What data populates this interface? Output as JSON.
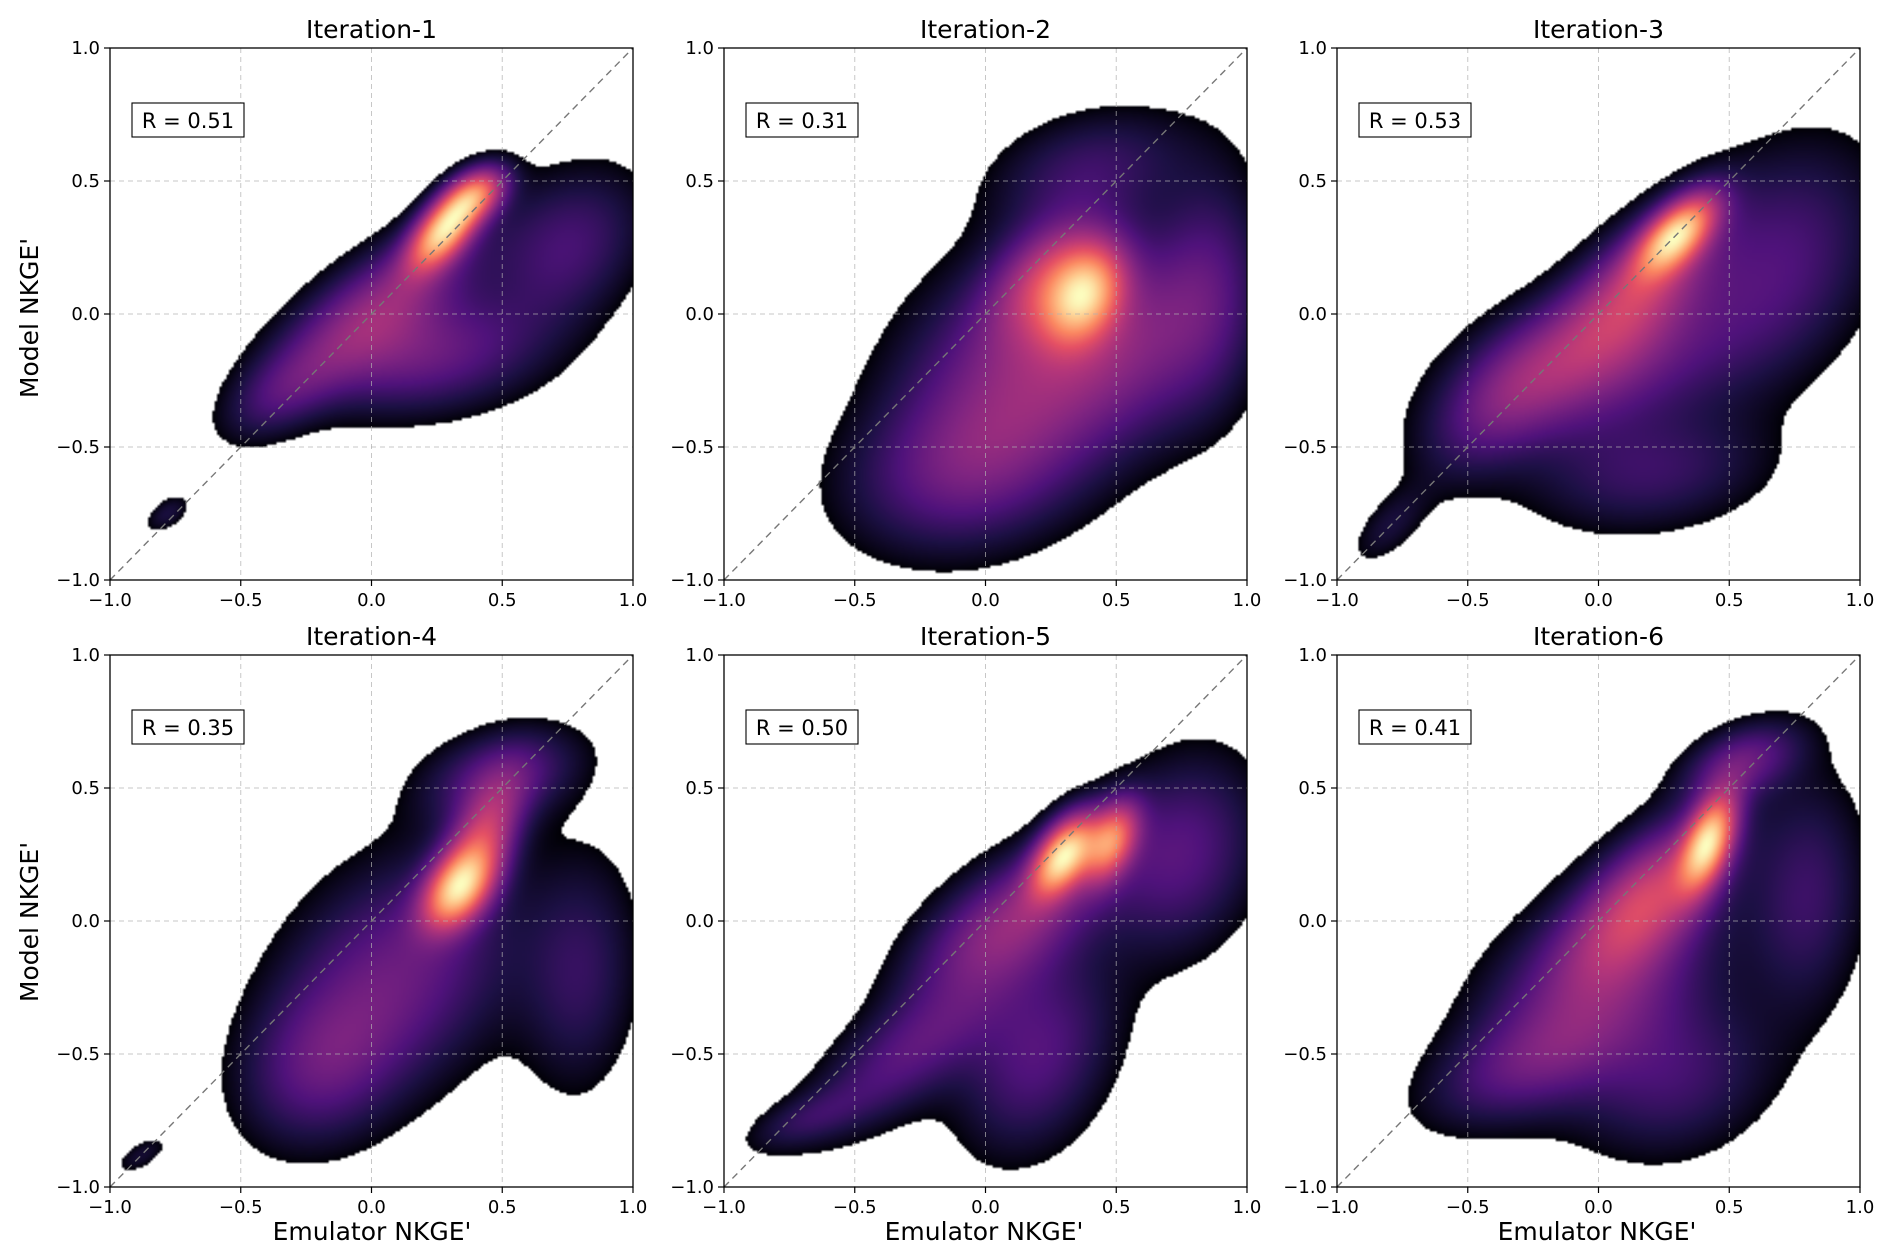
{
  "figure": {
    "shared_xlabel": "Emulator NKGE'",
    "shared_ylabel": "Model NKGE'",
    "colormap": [
      "#000004",
      "#1c1044",
      "#4f127b",
      "#812581",
      "#b5367a",
      "#e55064",
      "#fb8761",
      "#fec287",
      "#fcfdbf"
    ]
  },
  "chart_data": [
    {
      "type": "heatmap",
      "title": "Iteration-1",
      "annotation": "R = 0.51",
      "r": 0.51,
      "xlabel": "",
      "ylabel": "Model NKGE'",
      "xlim": [
        -1.0,
        1.0
      ],
      "ylim": [
        -1.0,
        1.0
      ],
      "xticks": [
        "−1.0",
        "−0.5",
        "0.0",
        "0.5",
        "1.0"
      ],
      "yticks": [
        "−1.0",
        "−0.5",
        "0.0",
        "0.5",
        "1.0"
      ],
      "grid": true,
      "reference_line": "y = x",
      "density_peaks": [
        {
          "x": 0.28,
          "y": 0.32,
          "w": 1.0,
          "sx": 0.09,
          "sy": 0.1,
          "rho": 0.6
        },
        {
          "x": 0.4,
          "y": 0.45,
          "w": 0.6,
          "sx": 0.08,
          "sy": 0.07,
          "rho": 0.4
        },
        {
          "x": 0.05,
          "y": 0.05,
          "w": 0.35,
          "sx": 0.25,
          "sy": 0.2,
          "rho": 0.7
        },
        {
          "x": 0.2,
          "y": -0.15,
          "w": 0.3,
          "sx": 0.3,
          "sy": 0.15,
          "rho": 0.2
        },
        {
          "x": 0.75,
          "y": 0.25,
          "w": 0.22,
          "sx": 0.2,
          "sy": 0.2,
          "rho": 0.3
        },
        {
          "x": -0.35,
          "y": -0.3,
          "w": 0.18,
          "sx": 0.15,
          "sy": 0.12,
          "rho": 0.5
        },
        {
          "x": -0.78,
          "y": -0.75,
          "w": 0.12,
          "sx": 0.06,
          "sy": 0.05,
          "rho": 0.5
        }
      ]
    },
    {
      "type": "heatmap",
      "title": "Iteration-2",
      "annotation": "R = 0.31",
      "r": 0.31,
      "xlabel": "",
      "ylabel": "",
      "xlim": [
        -1.0,
        1.0
      ],
      "ylim": [
        -1.0,
        1.0
      ],
      "xticks": [
        "−1.0",
        "−0.5",
        "0.0",
        "0.5",
        "1.0"
      ],
      "yticks": [
        "−1.0",
        "−0.5",
        "0.0",
        "0.5",
        "1.0"
      ],
      "grid": true,
      "reference_line": "y = x",
      "density_peaks": [
        {
          "x": 0.38,
          "y": 0.07,
          "w": 1.0,
          "sx": 0.1,
          "sy": 0.12,
          "rho": 0.3
        },
        {
          "x": 0.25,
          "y": 0.15,
          "w": 0.55,
          "sx": 0.15,
          "sy": 0.15,
          "rho": 0.4
        },
        {
          "x": 0.1,
          "y": -0.25,
          "w": 0.45,
          "sx": 0.3,
          "sy": 0.3,
          "rho": 0.2
        },
        {
          "x": 0.5,
          "y": -0.1,
          "w": 0.4,
          "sx": 0.25,
          "sy": 0.25,
          "rho": 0.1
        },
        {
          "x": -0.1,
          "y": -0.6,
          "w": 0.3,
          "sx": 0.3,
          "sy": 0.2,
          "rho": 0.2
        },
        {
          "x": 0.85,
          "y": 0.1,
          "w": 0.3,
          "sx": 0.15,
          "sy": 0.3,
          "rho": 0.1
        },
        {
          "x": 0.4,
          "y": 0.55,
          "w": 0.25,
          "sx": 0.25,
          "sy": 0.15,
          "rho": 0.3
        }
      ]
    },
    {
      "type": "heatmap",
      "title": "Iteration-3",
      "annotation": "R = 0.53",
      "r": 0.53,
      "xlabel": "",
      "ylabel": "",
      "xlim": [
        -1.0,
        1.0
      ],
      "ylim": [
        -1.0,
        1.0
      ],
      "xticks": [
        "−1.0",
        "−0.5",
        "0.0",
        "0.5",
        "1.0"
      ],
      "yticks": [
        "−1.0",
        "−0.5",
        "0.0",
        "0.5",
        "1.0"
      ],
      "grid": true,
      "reference_line": "y = x",
      "density_peaks": [
        {
          "x": 0.3,
          "y": 0.3,
          "w": 1.0,
          "sx": 0.1,
          "sy": 0.1,
          "rho": 0.6
        },
        {
          "x": 0.15,
          "y": 0.1,
          "w": 0.5,
          "sx": 0.2,
          "sy": 0.2,
          "rho": 0.6
        },
        {
          "x": 0.0,
          "y": -0.2,
          "w": 0.35,
          "sx": 0.35,
          "sy": 0.2,
          "rho": 0.4
        },
        {
          "x": -0.35,
          "y": -0.3,
          "w": 0.25,
          "sx": 0.2,
          "sy": 0.2,
          "rho": 0.6
        },
        {
          "x": 0.7,
          "y": 0.2,
          "w": 0.25,
          "sx": 0.25,
          "sy": 0.3,
          "rho": 0.3
        },
        {
          "x": 0.2,
          "y": -0.6,
          "w": 0.2,
          "sx": 0.3,
          "sy": 0.15,
          "rho": 0.2
        },
        {
          "x": -0.8,
          "y": -0.8,
          "w": 0.12,
          "sx": 0.1,
          "sy": 0.1,
          "rho": 0.6
        }
      ]
    },
    {
      "type": "heatmap",
      "title": "Iteration-4",
      "annotation": "R = 0.35",
      "r": 0.35,
      "xlabel": "",
      "ylabel": "Model NKGE'",
      "xlim": [
        -1.0,
        1.0
      ],
      "ylim": [
        -1.0,
        1.0
      ],
      "xticks": [
        "−1.0",
        "−0.5",
        "0.0",
        "0.5",
        "1.0"
      ],
      "yticks": [
        "−1.0",
        "−0.5",
        "0.0",
        "0.5",
        "1.0"
      ],
      "grid": true,
      "reference_line": "y = x",
      "density_peaks": [
        {
          "x": 0.33,
          "y": 0.12,
          "w": 1.0,
          "sx": 0.09,
          "sy": 0.1,
          "rho": 0.4
        },
        {
          "x": 0.42,
          "y": 0.3,
          "w": 0.6,
          "sx": 0.1,
          "sy": 0.15,
          "rho": 0.5
        },
        {
          "x": 0.1,
          "y": -0.2,
          "w": 0.35,
          "sx": 0.3,
          "sy": 0.3,
          "rho": 0.3
        },
        {
          "x": -0.2,
          "y": -0.55,
          "w": 0.25,
          "sx": 0.2,
          "sy": 0.2,
          "rho": 0.2
        },
        {
          "x": 0.5,
          "y": 0.55,
          "w": 0.3,
          "sx": 0.2,
          "sy": 0.12,
          "rho": 0.3
        },
        {
          "x": 0.8,
          "y": -0.2,
          "w": 0.2,
          "sx": 0.15,
          "sy": 0.3,
          "rho": 0.1
        },
        {
          "x": -0.88,
          "y": -0.88,
          "w": 0.12,
          "sx": 0.07,
          "sy": 0.05,
          "rho": 0.6
        }
      ]
    },
    {
      "type": "heatmap",
      "title": "Iteration-5",
      "annotation": "R = 0.50",
      "r": 0.5,
      "xlabel": "Emulator NKGE'",
      "ylabel": "",
      "xlim": [
        -1.0,
        1.0
      ],
      "ylim": [
        -1.0,
        1.0
      ],
      "xticks": [
        "−1.0",
        "−0.5",
        "0.0",
        "0.5",
        "1.0"
      ],
      "yticks": [
        "−1.0",
        "−0.5",
        "0.0",
        "0.5",
        "1.0"
      ],
      "grid": true,
      "reference_line": "y = x",
      "density_peaks": [
        {
          "x": 0.3,
          "y": 0.25,
          "w": 1.0,
          "sx": 0.08,
          "sy": 0.1,
          "rho": 0.5
        },
        {
          "x": 0.48,
          "y": 0.3,
          "w": 0.7,
          "sx": 0.07,
          "sy": 0.1,
          "rho": 0.4
        },
        {
          "x": 0.1,
          "y": 0.0,
          "w": 0.4,
          "sx": 0.25,
          "sy": 0.2,
          "rho": 0.6
        },
        {
          "x": -0.3,
          "y": -0.5,
          "w": 0.25,
          "sx": 0.25,
          "sy": 0.2,
          "rho": 0.7
        },
        {
          "x": 0.2,
          "y": -0.5,
          "w": 0.25,
          "sx": 0.2,
          "sy": 0.25,
          "rho": 0.3
        },
        {
          "x": 0.75,
          "y": 0.25,
          "w": 0.25,
          "sx": 0.2,
          "sy": 0.25,
          "rho": 0.2
        },
        {
          "x": -0.7,
          "y": -0.75,
          "w": 0.12,
          "sx": 0.15,
          "sy": 0.08,
          "rho": 0.6
        }
      ]
    },
    {
      "type": "heatmap",
      "title": "Iteration-6",
      "annotation": "R = 0.41",
      "r": 0.41,
      "xlabel": "Emulator NKGE'",
      "ylabel": "",
      "xlim": [
        -1.0,
        1.0
      ],
      "ylim": [
        -1.0,
        1.0
      ],
      "xticks": [
        "−1.0",
        "−0.5",
        "0.0",
        "0.5",
        "1.0"
      ],
      "yticks": [
        "−1.0",
        "−0.5",
        "0.0",
        "0.5",
        "1.0"
      ],
      "grid": true,
      "reference_line": "y = x",
      "density_peaks": [
        {
          "x": 0.42,
          "y": 0.3,
          "w": 1.0,
          "sx": 0.07,
          "sy": 0.12,
          "rho": 0.5
        },
        {
          "x": 0.2,
          "y": 0.1,
          "w": 0.55,
          "sx": 0.2,
          "sy": 0.2,
          "rho": 0.6
        },
        {
          "x": 0.0,
          "y": -0.25,
          "w": 0.35,
          "sx": 0.3,
          "sy": 0.25,
          "rho": 0.4
        },
        {
          "x": -0.3,
          "y": -0.55,
          "w": 0.2,
          "sx": 0.25,
          "sy": 0.15,
          "rho": 0.5
        },
        {
          "x": 0.3,
          "y": -0.6,
          "w": 0.2,
          "sx": 0.25,
          "sy": 0.2,
          "rho": 0.2
        },
        {
          "x": 0.8,
          "y": 0.1,
          "w": 0.2,
          "sx": 0.15,
          "sy": 0.3,
          "rho": 0.1
        },
        {
          "x": 0.55,
          "y": 0.6,
          "w": 0.3,
          "sx": 0.15,
          "sy": 0.1,
          "rho": 0.4
        }
      ]
    }
  ]
}
